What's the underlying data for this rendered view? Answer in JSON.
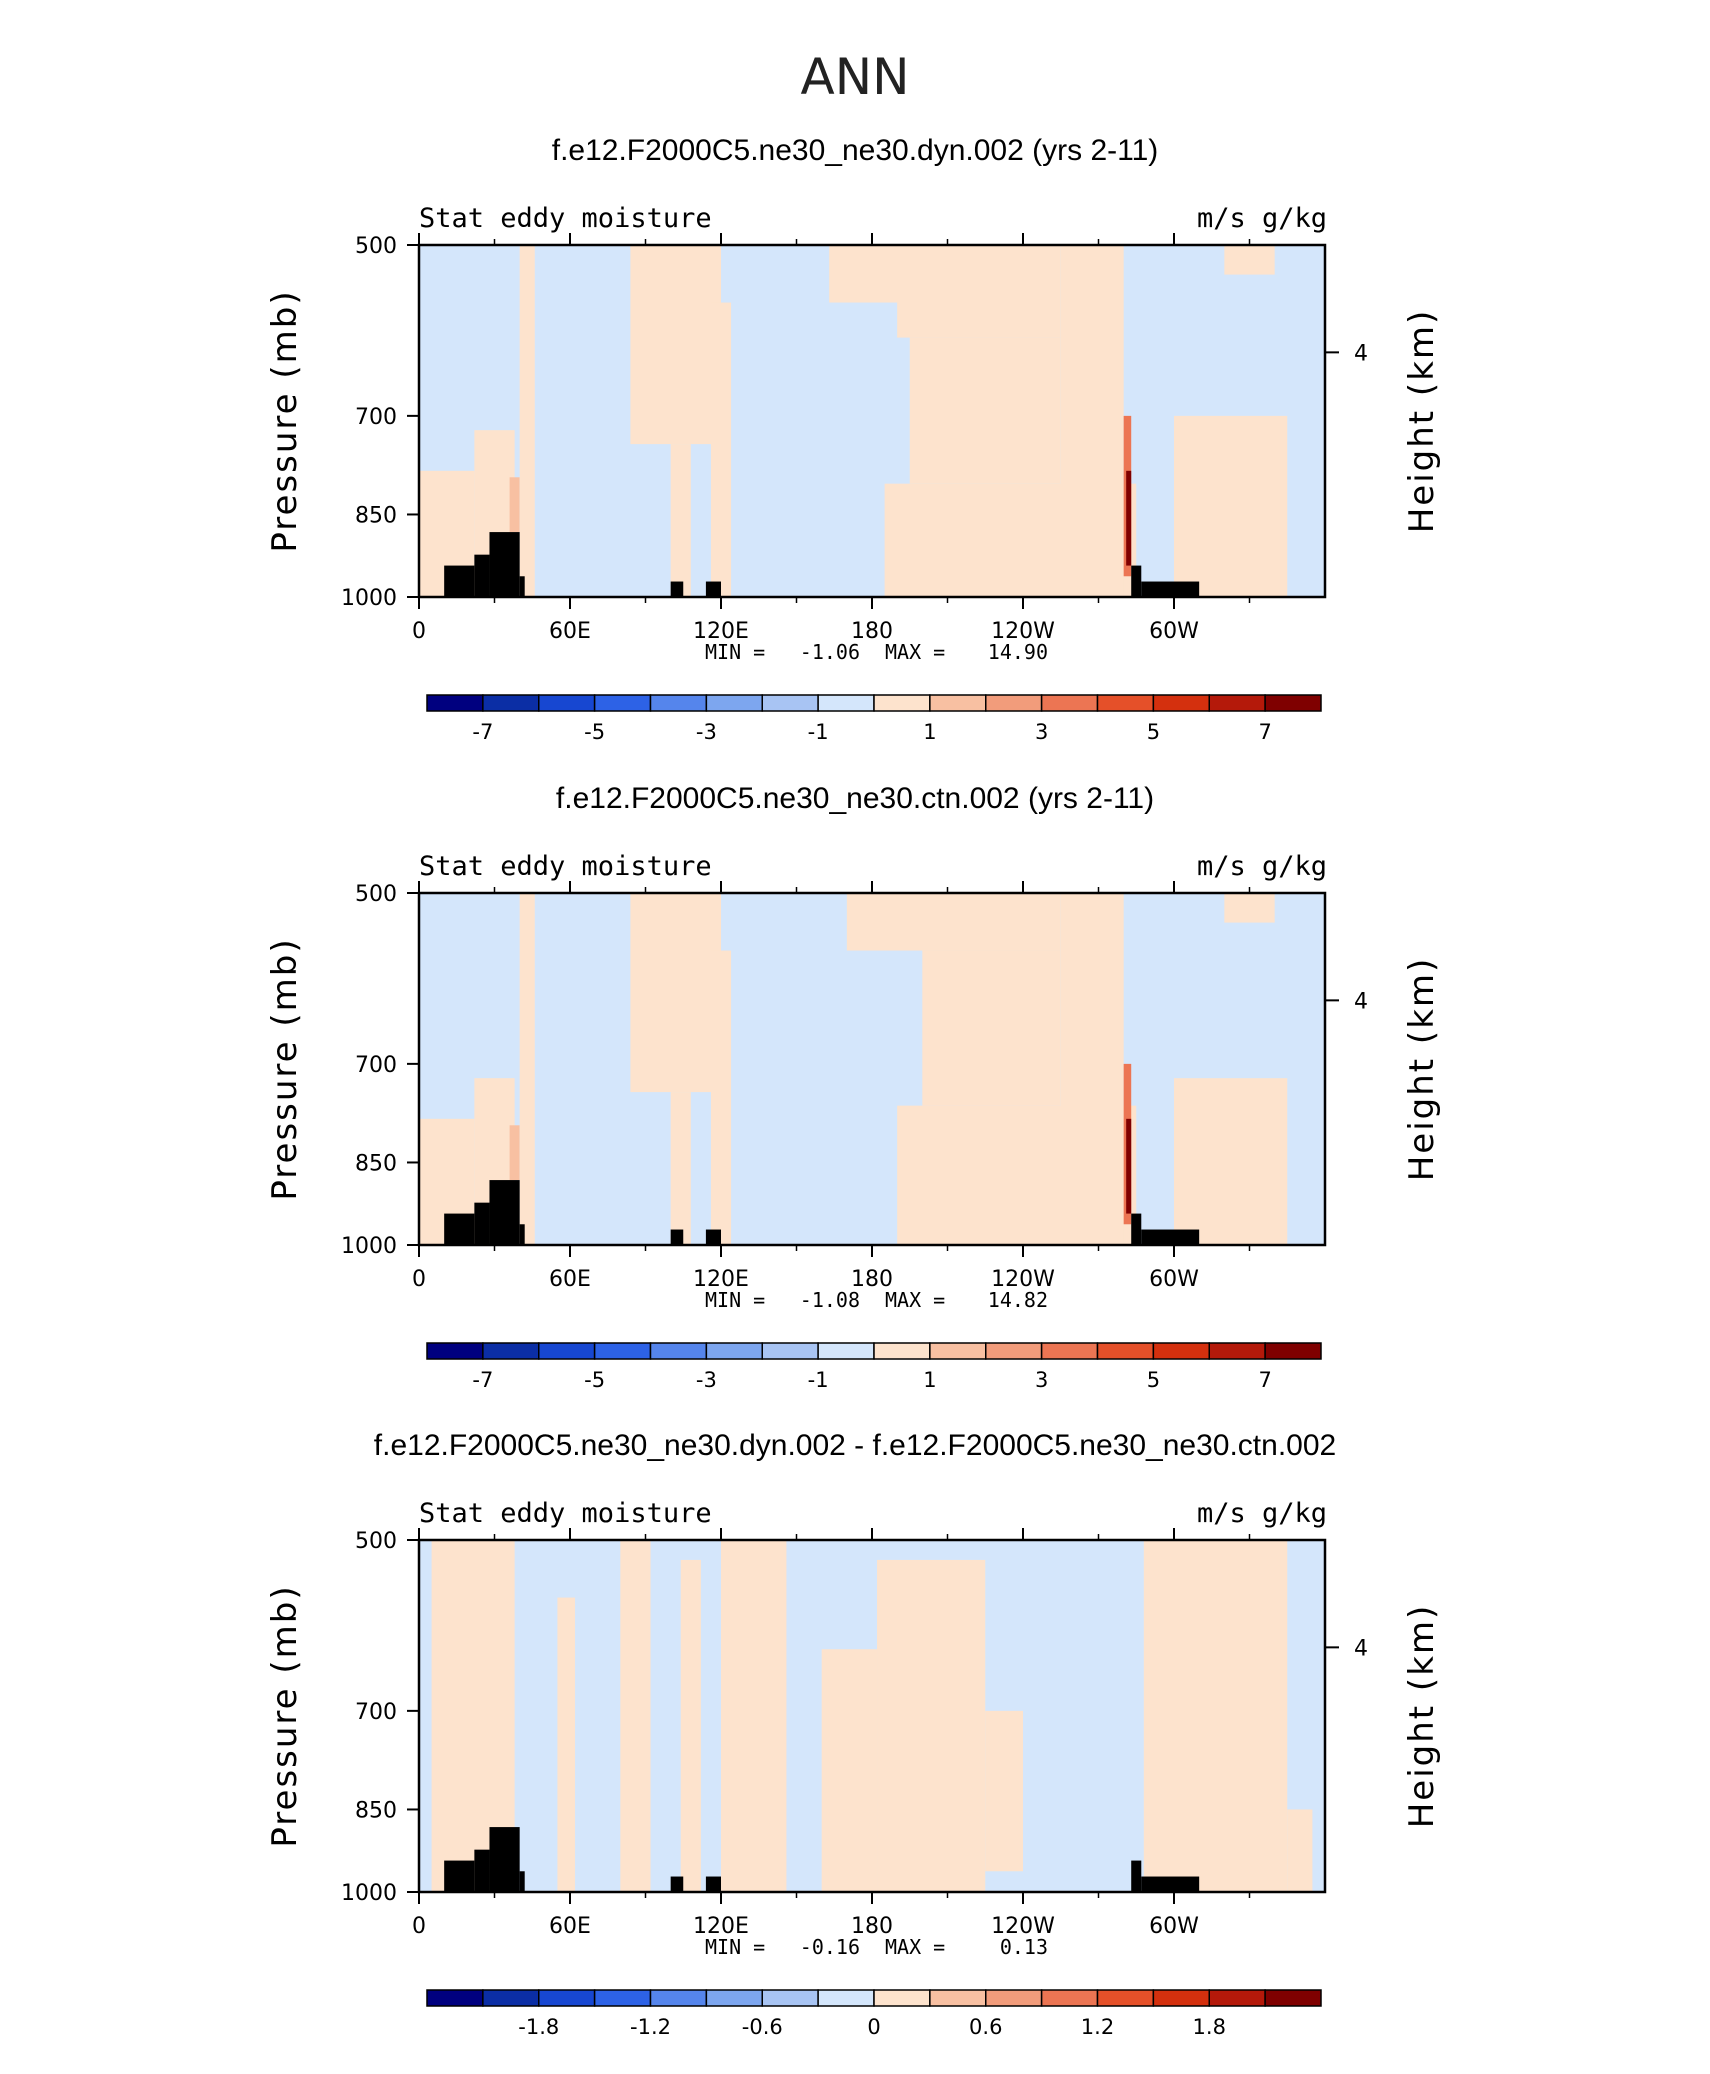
{
  "figure_title": "ANN",
  "chart_data": [
    {
      "type": "heatmap",
      "title": "f.e12.F2000C5.ne30_ne30.dyn.002 (yrs 2-11)",
      "left_label": "Stat eddy moisture",
      "right_label": "m/s g/kg",
      "ylabel": "Pressure (mb)",
      "y2label": "Height (km)",
      "xticks": [
        "0",
        "60E",
        "120E",
        "180",
        "120W",
        "60W"
      ],
      "xtick_lon": [
        0,
        60,
        120,
        180,
        240,
        300
      ],
      "xlim": [
        0,
        360
      ],
      "yticks": [
        "500",
        "700",
        "850",
        "1000"
      ],
      "ytick_p": [
        500,
        700,
        850,
        1000
      ],
      "ylim": [
        1000,
        500
      ],
      "y2ticks": [
        "4"
      ],
      "min_label": "MIN =",
      "min": "-1.06",
      "max_label": "MAX =",
      "max": "14.90",
      "colorbar": {
        "labels": [
          "-7",
          "-5",
          "-3",
          "-1",
          "1",
          "3",
          "5",
          "7"
        ],
        "levels": [
          -8,
          -7,
          -6,
          -5,
          -4,
          -3,
          -2,
          -1,
          0,
          1,
          2,
          3,
          4,
          5,
          6,
          7,
          8
        ]
      },
      "regions": [
        {
          "lon": [
            0,
            360
          ],
          "p": [
            500,
            1000
          ],
          "value": -0.5
        },
        {
          "lon": [
            0,
            22
          ],
          "p": [
            780,
            1000
          ],
          "value": 0.5
        },
        {
          "lon": [
            22,
            38
          ],
          "p": [
            720,
            1000
          ],
          "value": 0.5
        },
        {
          "lon": [
            36,
            40
          ],
          "p": [
            790,
            880
          ],
          "value": 1.5
        },
        {
          "lon": [
            40,
            46
          ],
          "p": [
            500,
            1000
          ],
          "value": 0.5
        },
        {
          "lon": [
            84,
            120
          ],
          "p": [
            500,
            740
          ],
          "value": 0.5
        },
        {
          "lon": [
            100,
            108
          ],
          "p": [
            740,
            1000
          ],
          "value": 0.5
        },
        {
          "lon": [
            116,
            124
          ],
          "p": [
            560,
            1000
          ],
          "value": 0.5
        },
        {
          "lon": [
            163,
            200
          ],
          "p": [
            500,
            560
          ],
          "value": 0.5
        },
        {
          "lon": [
            190,
            255
          ],
          "p": [
            500,
            600
          ],
          "value": 0.5
        },
        {
          "lon": [
            195,
            255
          ],
          "p": [
            600,
            800
          ],
          "value": 0.5
        },
        {
          "lon": [
            185,
            285
          ],
          "p": [
            800,
            1000
          ],
          "value": 0.5
        },
        {
          "lon": [
            255,
            280
          ],
          "p": [
            500,
            1000
          ],
          "value": 0.5
        },
        {
          "lon": [
            280,
            283
          ],
          "p": [
            700,
            960
          ],
          "value": 3
        },
        {
          "lon": [
            281,
            283
          ],
          "p": [
            780,
            940
          ],
          "value": 8
        },
        {
          "lon": [
            300,
            345
          ],
          "p": [
            700,
            1000
          ],
          "value": 0.5
        },
        {
          "lon": [
            320,
            340
          ],
          "p": [
            500,
            530
          ],
          "value": 0.5
        }
      ],
      "land_mask": [
        {
          "lon": [
            10,
            22
          ],
          "p": [
            940,
            1000
          ]
        },
        {
          "lon": [
            22,
            28
          ],
          "p": [
            920,
            1000
          ]
        },
        {
          "lon": [
            28,
            40
          ],
          "p": [
            880,
            1000
          ]
        },
        {
          "lon": [
            40,
            42
          ],
          "p": [
            960,
            1000
          ]
        },
        {
          "lon": [
            100,
            105
          ],
          "p": [
            970,
            1000
          ]
        },
        {
          "lon": [
            114,
            120
          ],
          "p": [
            970,
            1000
          ]
        },
        {
          "lon": [
            283,
            287
          ],
          "p": [
            940,
            1000
          ]
        },
        {
          "lon": [
            287,
            310
          ],
          "p": [
            970,
            1000
          ]
        }
      ]
    },
    {
      "type": "heatmap",
      "title": "f.e12.F2000C5.ne30_ne30.ctn.002 (yrs 2-11)",
      "left_label": "Stat eddy moisture",
      "right_label": "m/s g/kg",
      "ylabel": "Pressure (mb)",
      "y2label": "Height (km)",
      "xticks": [
        "0",
        "60E",
        "120E",
        "180",
        "120W",
        "60W"
      ],
      "xtick_lon": [
        0,
        60,
        120,
        180,
        240,
        300
      ],
      "xlim": [
        0,
        360
      ],
      "yticks": [
        "500",
        "700",
        "850",
        "1000"
      ],
      "ytick_p": [
        500,
        700,
        850,
        1000
      ],
      "ylim": [
        1000,
        500
      ],
      "y2ticks": [
        "4"
      ],
      "min_label": "MIN =",
      "min": "-1.08",
      "max_label": "MAX =",
      "max": "14.82",
      "colorbar": {
        "labels": [
          "-7",
          "-5",
          "-3",
          "-1",
          "1",
          "3",
          "5",
          "7"
        ],
        "levels": [
          -8,
          -7,
          -6,
          -5,
          -4,
          -3,
          -2,
          -1,
          0,
          1,
          2,
          3,
          4,
          5,
          6,
          7,
          8
        ]
      },
      "regions": [
        {
          "lon": [
            0,
            360
          ],
          "p": [
            500,
            1000
          ],
          "value": -0.5
        },
        {
          "lon": [
            0,
            22
          ],
          "p": [
            780,
            1000
          ],
          "value": 0.5
        },
        {
          "lon": [
            22,
            38
          ],
          "p": [
            720,
            1000
          ],
          "value": 0.5
        },
        {
          "lon": [
            36,
            40
          ],
          "p": [
            790,
            880
          ],
          "value": 1.5
        },
        {
          "lon": [
            40,
            46
          ],
          "p": [
            500,
            1000
          ],
          "value": 0.5
        },
        {
          "lon": [
            84,
            120
          ],
          "p": [
            500,
            740
          ],
          "value": 0.5
        },
        {
          "lon": [
            100,
            108
          ],
          "p": [
            740,
            1000
          ],
          "value": 0.5
        },
        {
          "lon": [
            116,
            124
          ],
          "p": [
            560,
            1000
          ],
          "value": 0.5
        },
        {
          "lon": [
            170,
            255
          ],
          "p": [
            500,
            560
          ],
          "value": 0.5
        },
        {
          "lon": [
            200,
            255
          ],
          "p": [
            560,
            760
          ],
          "value": 0.5
        },
        {
          "lon": [
            190,
            285
          ],
          "p": [
            760,
            1000
          ],
          "value": 0.5
        },
        {
          "lon": [
            255,
            280
          ],
          "p": [
            500,
            1000
          ],
          "value": 0.5
        },
        {
          "lon": [
            280,
            283
          ],
          "p": [
            700,
            960
          ],
          "value": 3
        },
        {
          "lon": [
            281,
            283
          ],
          "p": [
            780,
            940
          ],
          "value": 8
        },
        {
          "lon": [
            300,
            345
          ],
          "p": [
            720,
            1000
          ],
          "value": 0.5
        },
        {
          "lon": [
            320,
            340
          ],
          "p": [
            500,
            530
          ],
          "value": 0.5
        }
      ],
      "land_mask": [
        {
          "lon": [
            10,
            22
          ],
          "p": [
            940,
            1000
          ]
        },
        {
          "lon": [
            22,
            28
          ],
          "p": [
            920,
            1000
          ]
        },
        {
          "lon": [
            28,
            40
          ],
          "p": [
            880,
            1000
          ]
        },
        {
          "lon": [
            40,
            42
          ],
          "p": [
            960,
            1000
          ]
        },
        {
          "lon": [
            100,
            105
          ],
          "p": [
            970,
            1000
          ]
        },
        {
          "lon": [
            114,
            120
          ],
          "p": [
            970,
            1000
          ]
        },
        {
          "lon": [
            283,
            287
          ],
          "p": [
            940,
            1000
          ]
        },
        {
          "lon": [
            287,
            310
          ],
          "p": [
            970,
            1000
          ]
        }
      ]
    },
    {
      "type": "heatmap",
      "title": "f.e12.F2000C5.ne30_ne30.dyn.002 - f.e12.F2000C5.ne30_ne30.ctn.002",
      "left_label": "Stat eddy moisture",
      "right_label": "m/s g/kg",
      "ylabel": "Pressure (mb)",
      "y2label": "Height (km)",
      "xticks": [
        "0",
        "60E",
        "120E",
        "180",
        "120W",
        "60W"
      ],
      "xtick_lon": [
        0,
        60,
        120,
        180,
        240,
        300
      ],
      "xlim": [
        0,
        360
      ],
      "yticks": [
        "500",
        "700",
        "850",
        "1000"
      ],
      "ytick_p": [
        500,
        700,
        850,
        1000
      ],
      "ylim": [
        1000,
        500
      ],
      "y2ticks": [
        "4"
      ],
      "min_label": "MIN =",
      "min": "-0.16",
      "max_label": "MAX =",
      "max": "0.13",
      "colorbar": {
        "labels": [
          "-1.8",
          "-1.2",
          "-0.6",
          "0",
          "0.6",
          "1.2",
          "1.8"
        ],
        "levels": [
          -2.4,
          -2.1,
          -1.8,
          -1.5,
          -1.2,
          -0.9,
          -0.6,
          -0.3,
          0,
          0.3,
          0.6,
          0.9,
          1.2,
          1.5,
          1.8,
          2.1,
          2.4
        ]
      },
      "regions": [
        {
          "lon": [
            0,
            360
          ],
          "p": [
            500,
            1000
          ],
          "value": -0.1
        },
        {
          "lon": [
            5,
            38
          ],
          "p": [
            500,
            1000
          ],
          "value": 0.1
        },
        {
          "lon": [
            55,
            62
          ],
          "p": [
            560,
            1000
          ],
          "value": 0.1
        },
        {
          "lon": [
            80,
            92
          ],
          "p": [
            500,
            1000
          ],
          "value": 0.1
        },
        {
          "lon": [
            104,
            112
          ],
          "p": [
            520,
            1000
          ],
          "value": 0.1
        },
        {
          "lon": [
            120,
            146
          ],
          "p": [
            500,
            1000
          ],
          "value": 0.1
        },
        {
          "lon": [
            160,
            182
          ],
          "p": [
            620,
            1000
          ],
          "value": 0.1
        },
        {
          "lon": [
            182,
            225
          ],
          "p": [
            520,
            1000
          ],
          "value": 0.1
        },
        {
          "lon": [
            225,
            240
          ],
          "p": [
            700,
            960
          ],
          "value": 0.1
        },
        {
          "lon": [
            288,
            345
          ],
          "p": [
            500,
            1000
          ],
          "value": 0.1
        },
        {
          "lon": [
            345,
            355
          ],
          "p": [
            850,
            1000
          ],
          "value": 0.1
        }
      ],
      "land_mask": [
        {
          "lon": [
            10,
            22
          ],
          "p": [
            940,
            1000
          ]
        },
        {
          "lon": [
            22,
            28
          ],
          "p": [
            920,
            1000
          ]
        },
        {
          "lon": [
            28,
            40
          ],
          "p": [
            880,
            1000
          ]
        },
        {
          "lon": [
            40,
            42
          ],
          "p": [
            960,
            1000
          ]
        },
        {
          "lon": [
            100,
            105
          ],
          "p": [
            970,
            1000
          ]
        },
        {
          "lon": [
            114,
            120
          ],
          "p": [
            970,
            1000
          ]
        },
        {
          "lon": [
            283,
            287
          ],
          "p": [
            940,
            1000
          ]
        },
        {
          "lon": [
            287,
            310
          ],
          "p": [
            970,
            1000
          ]
        }
      ]
    }
  ],
  "palette": [
    "#00007f",
    "#0b2ea5",
    "#1747d1",
    "#2d62e6",
    "#5585ec",
    "#7da6ef",
    "#a8c4f3",
    "#d4e6fb",
    "#fde3cd",
    "#f8c0a2",
    "#f29c7b",
    "#ec7553",
    "#e55029",
    "#d4300e",
    "#b4190a",
    "#7f0000"
  ],
  "land_color": "#000000"
}
